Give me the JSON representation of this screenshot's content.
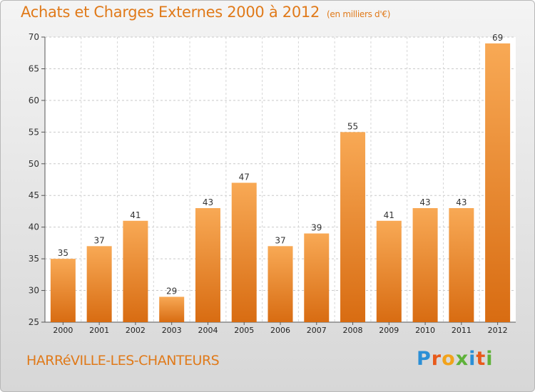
{
  "title": "Achats et Charges Externes 2000 à 2012",
  "unit": "(en milliers d'€)",
  "commune": "HARRéVILLE-LES-CHANTEURS",
  "logo": {
    "letters": [
      "P",
      "r",
      "o",
      "x",
      "i",
      "t",
      "i"
    ],
    "colors": [
      "#2b8fd6",
      "#e85a1b",
      "#f2a31b",
      "#5fb23a",
      "#2b8fd6",
      "#e85a1b",
      "#5fb23a"
    ]
  },
  "colors": {
    "bar_light": "#f8a955",
    "bar_dark": "#d86c12",
    "accent": "#e07a1a"
  },
  "chart_data": {
    "type": "bar",
    "categories": [
      "2000",
      "2001",
      "2002",
      "2003",
      "2004",
      "2005",
      "2006",
      "2007",
      "2008",
      "2009",
      "2010",
      "2011",
      "2012"
    ],
    "values": [
      35,
      37,
      41,
      29,
      43,
      47,
      37,
      39,
      55,
      41,
      43,
      43,
      69
    ],
    "ylim": [
      25,
      70
    ],
    "yticks": [
      25,
      30,
      35,
      40,
      45,
      50,
      55,
      60,
      65,
      70
    ],
    "grid": true
  }
}
